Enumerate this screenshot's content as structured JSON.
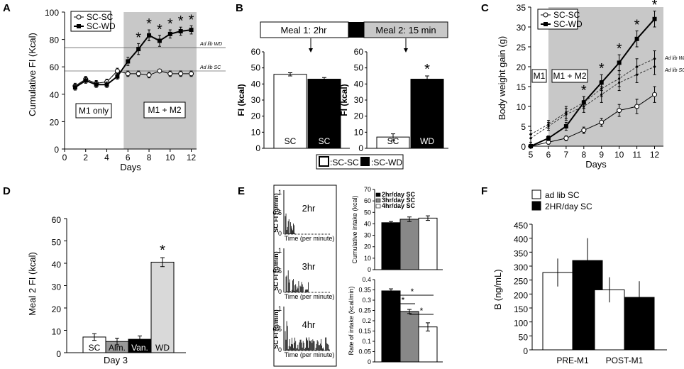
{
  "figure": {
    "panel_labels": [
      "A",
      "B",
      "C",
      "D",
      "E",
      "F"
    ]
  },
  "chart_data": [
    {
      "panel": "A",
      "type": "line",
      "title": "",
      "xlabel": "Days",
      "ylabel": "Cumulative FI (Kcal)",
      "xlim": [
        0,
        12.5
      ],
      "ylim": [
        0,
        100
      ],
      "xticks": [
        "0",
        "2",
        "4",
        "6",
        "8",
        "10",
        "12"
      ],
      "yticks": [
        "0",
        "20",
        "40",
        "60",
        "80",
        "100"
      ],
      "shaded_from_day": 5.6,
      "boxes": [
        "M1 only",
        "M1 + M2"
      ],
      "ref_lines": [
        {
          "label": "Ad lib WD",
          "y": 74
        },
        {
          "label": "Ad lib SC",
          "y": 57
        }
      ],
      "legend": [
        "SC-SC",
        "SC-WD"
      ],
      "series": [
        {
          "name": "SC-SC",
          "x": [
            1,
            2,
            3,
            4,
            5,
            6,
            7,
            8,
            9,
            10,
            11,
            12
          ],
          "y": [
            46,
            51,
            48,
            49,
            57,
            55,
            55,
            54,
            57,
            55,
            55,
            55
          ],
          "err": [
            2,
            2,
            2,
            2,
            2,
            2,
            2,
            2,
            1,
            2,
            2,
            2
          ]
        },
        {
          "name": "SC-WD",
          "x": [
            1,
            2,
            3,
            4,
            5,
            6,
            7,
            8,
            9,
            10,
            11,
            12
          ],
          "y": [
            45,
            50,
            47,
            47,
            53,
            64,
            73,
            83,
            79,
            84,
            86,
            87
          ],
          "err": [
            2,
            2,
            2,
            2,
            2,
            3,
            4,
            4,
            4,
            3,
            3,
            3
          ]
        }
      ],
      "significant_days": [
        7,
        8,
        9,
        10,
        11,
        12
      ],
      "significance_mark": "*"
    },
    {
      "panel": "B",
      "type": "bar",
      "meal_labels": [
        "Meal 1: 2hr",
        "Meal 2: 15 min"
      ],
      "legend": [
        ":SC-SC",
        ":SC-WD"
      ],
      "subcharts": [
        {
          "ylabel": "FI (kcal)",
          "ylim": [
            0,
            60
          ],
          "yticks": [
            "0",
            "10",
            "20",
            "30",
            "40",
            "50",
            "60"
          ],
          "categories": [
            "SC",
            "SC"
          ],
          "values": [
            46,
            43
          ],
          "err": [
            1,
            1
          ],
          "significant": []
        },
        {
          "ylabel": "FI (kcal)",
          "ylim": [
            0,
            60
          ],
          "yticks": [
            "0",
            "10",
            "20",
            "30",
            "40",
            "50",
            "60"
          ],
          "categories": [
            "SC",
            "WD"
          ],
          "values": [
            7,
            43
          ],
          "err": [
            2,
            2
          ],
          "significant": [
            1
          ],
          "significance_mark": "*"
        }
      ]
    },
    {
      "panel": "C",
      "type": "line",
      "xlabel": "Days",
      "ylabel": "Body weight gain (g)",
      "xlim": [
        5,
        12.5
      ],
      "ylim": [
        0,
        35
      ],
      "xticks": [
        "5",
        "6",
        "7",
        "8",
        "9",
        "10",
        "11",
        "12"
      ],
      "yticks": [
        "0",
        "5",
        "10",
        "15",
        "20",
        "25",
        "30",
        "35"
      ],
      "shaded_from_day": 6,
      "boxes": [
        "M1",
        "M1 + M2"
      ],
      "legend": [
        "SC-SC",
        "SC-WD"
      ],
      "series": [
        {
          "name": "SC-SC",
          "x": [
            5,
            6,
            7,
            8,
            9,
            10,
            11,
            12
          ],
          "y": [
            0,
            1,
            2,
            4,
            6,
            9,
            10,
            13
          ],
          "err": [
            0.3,
            0.5,
            0.6,
            0.8,
            1,
            1.5,
            1.8,
            2
          ]
        },
        {
          "name": "SC-WD",
          "x": [
            5,
            6,
            7,
            8,
            9,
            10,
            11,
            12
          ],
          "y": [
            0,
            2,
            5,
            11,
            16,
            21,
            27,
            32
          ],
          "err": [
            0.3,
            0.6,
            1,
            1.5,
            2,
            2,
            2,
            2
          ]
        },
        {
          "name": "Ad lib WD",
          "x": [
            5,
            6,
            7,
            8,
            9,
            10,
            11,
            12
          ],
          "y": [
            3,
            5.5,
            8.5,
            11,
            14.5,
            17,
            20,
            22
          ],
          "err": [
            1,
            1,
            1.5,
            1.5,
            2,
            2,
            2,
            2
          ]
        },
        {
          "name": "Ad lib SC",
          "x": [
            5,
            6,
            7,
            8,
            9,
            10,
            11,
            12
          ],
          "y": [
            2,
            5,
            8,
            10,
            13,
            16,
            18,
            20
          ],
          "err": [
            1,
            1,
            1.5,
            1.5,
            2,
            2,
            2,
            2
          ]
        }
      ],
      "series_labels": [
        "Ad lib WD",
        "Ad lib SC"
      ],
      "significant_days": [
        8,
        9,
        10,
        11,
        12
      ],
      "significance_mark": "*"
    },
    {
      "panel": "D",
      "type": "bar",
      "xlabel": "Day 3",
      "ylabel": "Meal 2 FI (kcal)",
      "ylim": [
        0,
        60
      ],
      "yticks": [
        "0",
        "10",
        "20",
        "30",
        "40",
        "50",
        "60"
      ],
      "categories": [
        "SC",
        "Alm.",
        "Van.",
        "WD"
      ],
      "values": [
        7,
        5,
        6,
        40.5
      ],
      "err": [
        1.5,
        1.5,
        1.5,
        2
      ],
      "colors": [
        "#ffffff",
        "#999999",
        "#000000",
        "#d9d9d9"
      ],
      "significant": [
        3
      ],
      "significance_mark": "*"
    },
    {
      "panel": "E",
      "type": "bar",
      "raster_titles": [
        "2hr",
        "3hr",
        "4hr"
      ],
      "raster_ylabel": "SC FI (g/min)",
      "raster_xlabel": "Time (per minute)",
      "raster_yticks": [
        "0",
        "0.5",
        "1"
      ],
      "legend": [
        "2hr/day SC",
        "3hr/day SC",
        "4hr/day SC"
      ],
      "subcharts": [
        {
          "ylabel": "Cumulative intake (kcal)",
          "ylim": [
            0,
            70
          ],
          "yticks": [
            "0",
            "10",
            "20",
            "30",
            "40",
            "50",
            "60",
            "70"
          ],
          "values": [
            41,
            44,
            45
          ],
          "err": [
            1,
            2,
            2
          ]
        },
        {
          "ylabel": "Rate of intake (kcal/min)",
          "ylim": [
            0,
            0.4
          ],
          "yticks": [
            "0",
            "0.05",
            "0.1",
            "0.15",
            "0.2",
            "0.25",
            "0.3",
            "0.35",
            "0.4"
          ],
          "values": [
            0.345,
            0.245,
            0.17
          ],
          "err": [
            0.01,
            0.01,
            0.02
          ],
          "significance_brackets": [
            [
              "2hr",
              "3hr"
            ],
            [
              "2hr",
              "4hr"
            ],
            [
              "3hr",
              "4hr"
            ]
          ],
          "significance_mark": "*"
        }
      ]
    },
    {
      "panel": "F",
      "type": "bar",
      "ylabel": "B  (ng/mL)",
      "ylim": [
        0,
        450
      ],
      "yticks": [
        "0",
        "50",
        "100",
        "150",
        "200",
        "250",
        "300",
        "350",
        "400",
        "450"
      ],
      "categories": [
        "PRE-M1",
        "POST-M1"
      ],
      "legend": [
        "ad lib SC",
        "2HR/day SC"
      ],
      "series": [
        {
          "name": "ad lib SC",
          "values": [
            277,
            215
          ],
          "err": [
            50,
            45
          ]
        },
        {
          "name": "2HR/day SC",
          "values": [
            320,
            188
          ],
          "err": [
            80,
            58
          ]
        }
      ]
    }
  ]
}
